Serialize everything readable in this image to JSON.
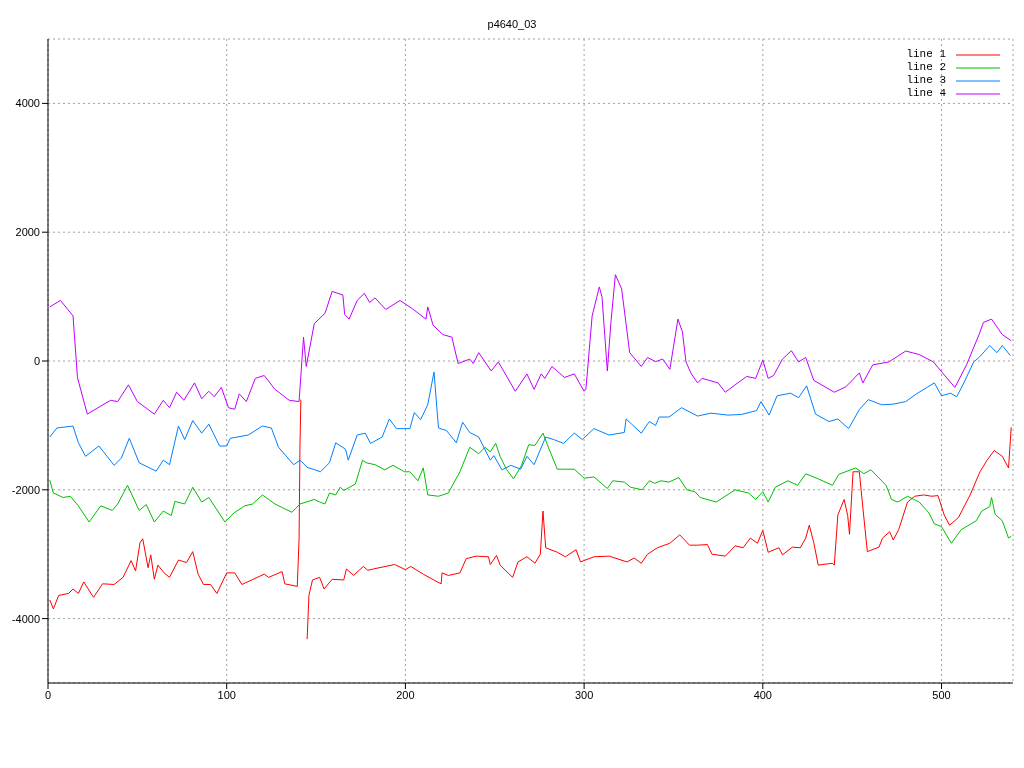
{
  "chart_data": {
    "type": "line",
    "title": "p4640_03",
    "xlim": [
      0,
      540
    ],
    "xticks": [
      0,
      100,
      200,
      300,
      400,
      500
    ],
    "ylim": [
      -5000,
      5000
    ],
    "yticks": [
      -4000,
      -2000,
      0,
      2000,
      4000
    ],
    "grid": true,
    "legend": "top right",
    "marker": "none",
    "line_style": "solid",
    "series": [
      {
        "name": "line 1",
        "color": "#ff0000",
        "x": [
          1,
          3,
          6,
          11.5,
          14,
          17,
          20,
          25.5,
          30.5,
          37,
          42,
          46.5,
          49,
          51.5,
          53,
          56,
          57.5,
          59.5,
          61.5,
          65,
          68,
          73,
          77.5,
          81,
          84,
          87,
          91,
          94.5,
          100,
          104.5,
          108.5,
          114,
          121,
          123.5,
          131,
          132.5,
          139.5,
          140.5,
          141,
          141.5,
          142.5,
          143,
          144,
          145,
          146,
          148,
          152,
          154.5,
          159,
          165.5,
          167,
          171,
          174.5,
          176.5,
          179,
          182,
          194,
          200,
          203,
          210,
          216.5,
          220,
          220.5,
          224,
          230.5,
          234,
          239.5,
          246.5,
          247.5,
          251,
          253,
          260,
          263,
          268,
          272.5,
          275.5,
          277,
          278.5,
          285,
          289.5,
          295.5,
          298,
          305.5,
          314,
          324,
          328,
          332,
          335.5,
          341,
          348,
          353.5,
          359,
          363.5,
          369,
          371.5,
          379,
          384.5,
          389,
          393,
          397,
          400,
          403,
          409,
          411,
          416.5,
          421,
          424,
          426,
          428.5,
          431,
          439,
          440,
          442,
          445.5,
          447.5,
          448.5,
          450.5,
          454,
          456,
          458.5,
          465,
          467,
          471,
          473,
          476,
          481,
          485,
          490,
          494.5,
          498,
          501.5,
          504.5,
          509.5,
          516,
          521.5,
          525.5,
          529.5,
          534,
          537.5,
          539
        ],
        "values": [
          -3710,
          -3850,
          -3640,
          -3610,
          -3540,
          -3610,
          -3430,
          -3670,
          -3460,
          -3470,
          -3360,
          -3100,
          -3260,
          -2820,
          -2760,
          -3210,
          -3010,
          -3390,
          -3170,
          -3290,
          -3360,
          -3090,
          -3130,
          -2960,
          -3310,
          -3470,
          -3470,
          -3610,
          -3290,
          -3290,
          -3470,
          -3400,
          -3310,
          -3360,
          -3270,
          -3460,
          -3500,
          -2760,
          -1320,
          -600,
          null,
          -4240,
          null,
          -4320,
          -3640,
          -3400,
          -3360,
          -3540,
          -3390,
          -3400,
          -3230,
          -3330,
          -3240,
          -3190,
          -3250,
          -3230,
          -3160,
          -3240,
          -3190,
          -3310,
          -3410,
          -3460,
          -3290,
          -3330,
          -3290,
          -3070,
          -3030,
          -3040,
          -3160,
          -3020,
          -3170,
          -3360,
          -3120,
          -3040,
          -3140,
          -3000,
          -2330,
          -2900,
          -2970,
          -3040,
          -2930,
          -3120,
          -3040,
          -3030,
          -3120,
          -3060,
          -3140,
          -3000,
          -2900,
          -2830,
          -2700,
          -2860,
          -2860,
          -2850,
          -3000,
          -3030,
          -2870,
          -2900,
          -2750,
          -2830,
          -2630,
          -2970,
          -2900,
          -3010,
          -2890,
          -2900,
          -2750,
          -2550,
          -2820,
          -3170,
          -3140,
          -3170,
          -2390,
          -2150,
          -2400,
          -2690,
          -1720,
          -1720,
          -2280,
          -2960,
          -2890,
          -2750,
          -2650,
          -2780,
          -2620,
          -2190,
          -2100,
          -2080,
          -2100,
          -2090,
          -2390,
          -2550,
          -2430,
          -2080,
          -1720,
          -1540,
          -1390,
          -1480,
          -1660,
          -1030
        ]
      },
      {
        "name": "line 2",
        "color": "#00c000",
        "x": [
          1,
          3,
          8.5,
          12.5,
          17,
          23,
          29.5,
          36,
          39,
          44.5,
          51,
          55,
          59.5,
          64.5,
          69,
          71,
          76.5,
          81,
          86,
          90,
          99,
          104,
          110,
          114.5,
          120,
          127,
          136.5,
          141,
          149,
          152,
          155,
          157.5,
          161,
          163.5,
          165.5,
          172,
          176,
          178,
          183,
          188.5,
          193,
          199.5,
          202.5,
          207,
          210,
          212.5,
          218.5,
          224,
          230.5,
          236,
          241,
          244.5,
          247.5,
          250.5,
          253,
          256.5,
          260.5,
          265,
          269,
          272.5,
          277,
          280,
          285,
          289.5,
          294.5,
          300,
          305.5,
          313,
          316,
          322.5,
          326,
          332.5,
          336.5,
          339.5,
          343,
          347.5,
          353,
          357.5,
          362,
          365,
          374,
          384.5,
          392,
          396,
          400,
          403,
          407,
          414,
          419.5,
          424,
          431,
          439,
          442.5,
          452,
          456.5,
          460.5,
          469,
          472,
          475.5,
          481,
          487.5,
          493,
          496,
          500,
          505.5,
          511,
          519.5,
          522.5,
          527,
          528,
          530,
          534,
          537.5,
          539
        ],
        "values": [
          -1850,
          -2050,
          -2120,
          -2100,
          -2250,
          -2500,
          -2250,
          -2320,
          -2220,
          -1930,
          -2320,
          -2230,
          -2500,
          -2330,
          -2400,
          -2180,
          -2220,
          -1960,
          -2190,
          -2120,
          -2500,
          -2360,
          -2250,
          -2220,
          -2080,
          -2220,
          -2350,
          -2220,
          -2150,
          -2190,
          -2220,
          -2050,
          -2080,
          -1960,
          -2010,
          -1910,
          -1540,
          -1580,
          -1610,
          -1690,
          -1620,
          -1720,
          -1720,
          -1860,
          -1660,
          -2080,
          -2100,
          -2050,
          -1720,
          -1340,
          -1440,
          -1340,
          -1410,
          -1280,
          -1480,
          -1680,
          -1830,
          -1620,
          -1300,
          -1310,
          -1120,
          -1340,
          -1680,
          -1680,
          -1680,
          -1820,
          -1800,
          -1980,
          -1860,
          -1880,
          -1960,
          -2000,
          -1860,
          -1900,
          -1860,
          -1880,
          -1810,
          -2000,
          -2030,
          -2120,
          -2190,
          -2000,
          -2050,
          -2150,
          -2030,
          -2190,
          -1960,
          -1860,
          -1930,
          -1750,
          -1830,
          -1930,
          -1760,
          -1660,
          -1750,
          -1690,
          -1930,
          -2150,
          -2190,
          -2100,
          -2190,
          -2360,
          -2530,
          -2570,
          -2830,
          -2620,
          -2480,
          -2330,
          -2260,
          -2120,
          -2380,
          -2480,
          -2750,
          -2720
        ]
      },
      {
        "name": "line 3",
        "color": "#0080ff",
        "x": [
          1,
          5,
          14,
          17,
          21,
          28.5,
          37,
          41,
          45.5,
          51,
          60.5,
          64.5,
          68,
          73,
          76.5,
          81,
          86,
          90,
          96,
          100,
          102,
          112,
          120,
          125,
          129,
          137.5,
          141,
          145,
          152.5,
          157.5,
          161,
          166.5,
          168,
          173,
          177.5,
          180.5,
          187,
          191,
          195,
          202.5,
          205,
          208.5,
          212.5,
          216,
          218.5,
          223,
          228.5,
          232,
          236,
          241,
          247.5,
          249.5,
          254,
          259,
          264.5,
          268,
          272,
          278.5,
          283,
          288.5,
          294.5,
          299,
          305.5,
          314,
          322.5,
          323.5,
          332,
          336.5,
          340,
          342,
          347.5,
          354.5,
          363.5,
          371,
          380.5,
          388,
          396.5,
          399,
          403.5,
          408,
          415.5,
          420,
          424.5,
          429.5,
          437,
          442,
          448,
          454,
          459,
          466.5,
          473,
          480,
          486,
          496,
          500,
          505,
          508.5,
          512.5,
          518,
          521,
          527,
          531,
          534,
          538.5
        ],
        "values": [
          -1180,
          -1040,
          -1010,
          -1270,
          -1480,
          -1320,
          -1620,
          -1510,
          -1200,
          -1580,
          -1710,
          -1540,
          -1610,
          -1010,
          -1220,
          -925,
          -1120,
          -980,
          -1320,
          -1320,
          -1200,
          -1150,
          -1010,
          -1040,
          -1340,
          -1610,
          -1540,
          -1650,
          -1720,
          -1580,
          -1270,
          -1370,
          -1540,
          -1150,
          -1120,
          -1280,
          -1180,
          -900,
          -1050,
          -1050,
          -800,
          -910,
          -680,
          -170,
          -1040,
          -1080,
          -1270,
          -950,
          -1110,
          -1180,
          -1540,
          -1470,
          -1690,
          -1620,
          -1680,
          -1480,
          -1610,
          -1180,
          -1220,
          -1280,
          -1120,
          -1220,
          -1050,
          -1150,
          -1110,
          -900,
          -1120,
          -940,
          -1000,
          -870,
          -870,
          -725,
          -855,
          -810,
          -840,
          -830,
          -770,
          -630,
          -840,
          -540,
          -500,
          -570,
          -385,
          -825,
          -940,
          -900,
          -1050,
          -755,
          -600,
          -680,
          -670,
          -630,
          -510,
          -340,
          -540,
          -500,
          -555,
          -340,
          -15,
          55,
          240,
          130,
          240,
          85
        ]
      },
      {
        "name": "line 4",
        "color": "#c000ff",
        "x": [
          1,
          7,
          14,
          16.5,
          22,
          28,
          35,
          39,
          45,
          50,
          59.5,
          64.5,
          68,
          72,
          76,
          82,
          86,
          90,
          93,
          97,
          101,
          104.5,
          107,
          111,
          116,
          121,
          127,
          135,
          140.5,
          143,
          144.5,
          149,
          155,
          159,
          165,
          166,
          168.5,
          173,
          177,
          180,
          183,
          189,
          197,
          204,
          211.5,
          212.5,
          215.5,
          221,
          226,
          229.5,
          236,
          238,
          241,
          248,
          252,
          261.5,
          268,
          272,
          276,
          278,
          282,
          289,
          294.5,
          300,
          301,
          304.5,
          308.5,
          310,
          313,
          315,
          317.5,
          321,
          325.5,
          332,
          335.5,
          340,
          344,
          348,
          352.5,
          355,
          357,
          360,
          363.5,
          366,
          375,
          379,
          384.5,
          391,
          396,
          400,
          403,
          406,
          411,
          416,
          420,
          424,
          428.5,
          440,
          446.5,
          454,
          456,
          461.5,
          470.5,
          480,
          487.5,
          495.5,
          501,
          507.5,
          514,
          521,
          523.5,
          528,
          534,
          539
        ],
        "values": [
          840,
          940,
          700,
          -260,
          -825,
          -725,
          -610,
          -630,
          -370,
          -630,
          -825,
          -610,
          -725,
          -485,
          -610,
          -340,
          -585,
          -470,
          -555,
          -410,
          -725,
          -750,
          -510,
          -630,
          -270,
          -225,
          -440,
          -610,
          -630,
          370,
          -85,
          580,
          740,
          1080,
          1025,
          725,
          650,
          940,
          1050,
          910,
          980,
          800,
          940,
          810,
          650,
          840,
          555,
          410,
          370,
          -40,
          30,
          -40,
          130,
          -155,
          -15,
          -470,
          -200,
          -440,
          -200,
          -270,
          -85,
          -256,
          -200,
          -470,
          -440,
          700,
          1150,
          1000,
          -155,
          600,
          1340,
          1120,
          130,
          -85,
          55,
          -10,
          30,
          -130,
          650,
          455,
          -15,
          -200,
          -340,
          -270,
          -340,
          -485,
          -370,
          -240,
          -270,
          15,
          -270,
          -225,
          30,
          160,
          -15,
          55,
          -300,
          -485,
          -400,
          -185,
          -340,
          -60,
          -15,
          155,
          100,
          -15,
          -200,
          -410,
          -60,
          410,
          600,
          650,
          410,
          315
        ]
      }
    ]
  }
}
